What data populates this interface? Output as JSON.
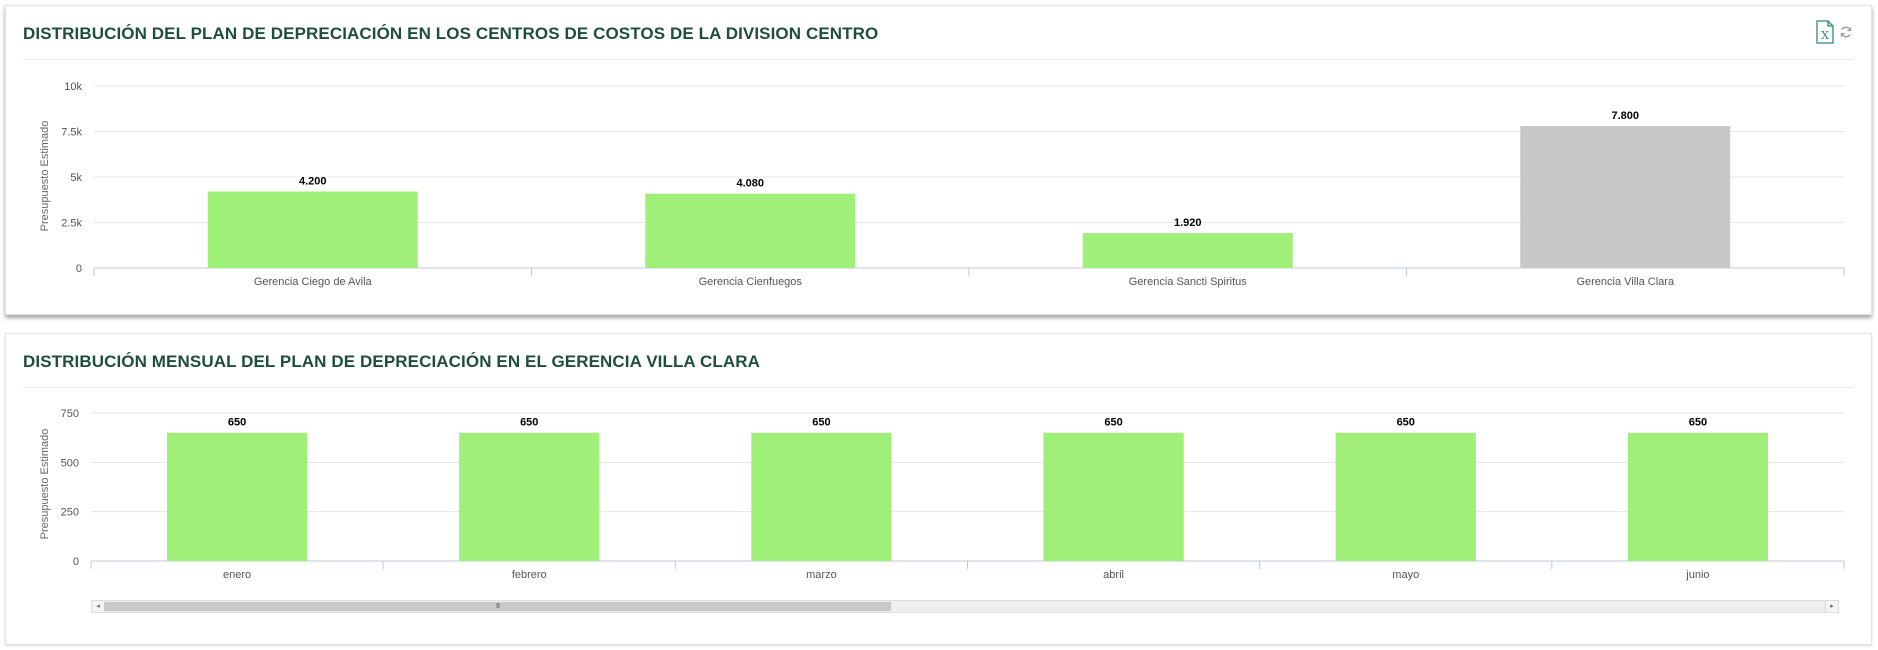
{
  "panels": [
    {
      "title": "DISTRIBUCIÓN DEL PLAN DE DEPRECIACIÓN EN LOS CENTROS DE COSTOS DE LA DIVISION CENTRO",
      "tools": [
        {
          "icon": "excel-export-icon"
        },
        {
          "icon": "refresh-icon"
        }
      ]
    },
    {
      "title": "DISTRIBUCIÓN MENSUAL DEL PLAN DE DEPRECIACIÓN EN EL GERENCIA VILLA CLARA"
    }
  ],
  "colors": {
    "title": "#1f4e3d",
    "bar": "#a0ef78",
    "bar_selected": "#c8c8c8",
    "grid": "#e6e6e6",
    "axis": "#c0c8d8",
    "tick_text": "#555555",
    "excel_icon": "#2e8b6e"
  },
  "chart_data": [
    {
      "type": "bar",
      "title": "DISTRIBUCIÓN DEL PLAN DE DEPRECIACIÓN EN LOS CENTROS DE COSTOS DE LA DIVISION CENTRO",
      "xlabel": "",
      "ylabel": "Presupuesto Estimado",
      "ylim": [
        0,
        10000
      ],
      "yticks": [
        0,
        2500,
        5000,
        7500,
        10000
      ],
      "ytick_labels": [
        "0",
        "2.5k",
        "5k",
        "7.5k",
        "10k"
      ],
      "categories": [
        "Gerencia Ciego de Avila",
        "Gerencia Cienfuegos",
        "Gerencia Sancti Spiritus",
        "Gerencia Villa Clara"
      ],
      "values": [
        4200,
        4080,
        1920,
        7800
      ],
      "value_labels": [
        "4.200",
        "4.080",
        "1.920",
        "7.800"
      ],
      "selected_category": "Gerencia Villa Clara",
      "grid": true,
      "legend": "none"
    },
    {
      "type": "bar",
      "title": "DISTRIBUCIÓN MENSUAL DEL PLAN DE DEPRECIACIÓN EN EL GERENCIA VILLA CLARA",
      "xlabel": "",
      "ylabel": "Presupuesto Estimado",
      "ylim": [
        0,
        750
      ],
      "yticks": [
        0,
        250,
        500,
        750
      ],
      "ytick_labels": [
        "0",
        "250",
        "500",
        "750"
      ],
      "categories": [
        "enero",
        "febrero",
        "marzo",
        "abril",
        "mayo",
        "junio"
      ],
      "values": [
        650,
        650,
        650,
        650,
        650,
        650
      ],
      "value_labels": [
        "650",
        "650",
        "650",
        "650",
        "650",
        "650"
      ],
      "grid": true,
      "legend": "none",
      "scrollbar": {
        "visible_fraction": 0.45,
        "position": "left"
      }
    }
  ]
}
